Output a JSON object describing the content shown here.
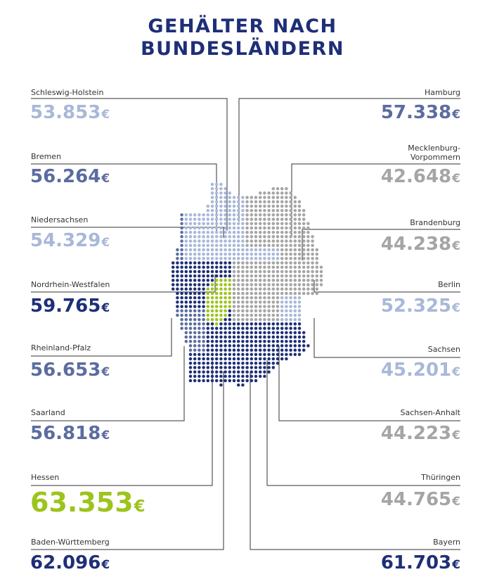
{
  "title": [
    "GEHÄLTER NACH",
    "BUNDESLÄNDERN"
  ],
  "currency": "€",
  "colors": {
    "tier_dark": "#1e2f77",
    "tier_mid": "#5b6c9f",
    "tier_light": "#a8b8d8",
    "tier_gray": "#a5a5a5",
    "tier_green": "#9cc41b",
    "leader_line": "#333333"
  },
  "chart_data": {
    "type": "map",
    "title": "GEHÄLTER NACH BUNDESLÄNDERN",
    "unit": "€",
    "regions": [
      {
        "name": "Schleswig-Holstein",
        "label": "53.853",
        "value": 53853,
        "tier": "light"
      },
      {
        "name": "Bremen",
        "label": "56.264",
        "value": 56264,
        "tier": "mid"
      },
      {
        "name": "Niedersachsen",
        "label": "54.329",
        "value": 54329,
        "tier": "light"
      },
      {
        "name": "Nordrhein-Westfalen",
        "label": "59.765",
        "value": 59765,
        "tier": "dark"
      },
      {
        "name": "Rheinland-Pfalz",
        "label": "56.653",
        "value": 56653,
        "tier": "mid"
      },
      {
        "name": "Saarland",
        "label": "56.818",
        "value": 56818,
        "tier": "mid"
      },
      {
        "name": "Hessen",
        "label": "63.353",
        "value": 63353,
        "tier": "green"
      },
      {
        "name": "Baden-Württemberg",
        "label": "62.096",
        "value": 62096,
        "tier": "dark"
      },
      {
        "name": "Hamburg",
        "label": "57.338",
        "value": 57338,
        "tier": "mid"
      },
      {
        "name": "Mecklenburg-Vorpommern",
        "label": "42.648",
        "value": 42648,
        "tier": "gray"
      },
      {
        "name": "Brandenburg",
        "label": "44.238",
        "value": 44238,
        "tier": "gray"
      },
      {
        "name": "Berlin",
        "label": "52.325",
        "value": 52325,
        "tier": "light"
      },
      {
        "name": "Sachsen",
        "label": "45.201",
        "value": 45201,
        "tier": "light"
      },
      {
        "name": "Sachsen-Anhalt",
        "label": "44.223",
        "value": 44223,
        "tier": "gray"
      },
      {
        "name": "Thüringen",
        "label": "44.765",
        "value": 44765,
        "tier": "gray"
      },
      {
        "name": "Bayern",
        "label": "61.703",
        "value": 61703,
        "tier": "dark"
      }
    ]
  }
}
